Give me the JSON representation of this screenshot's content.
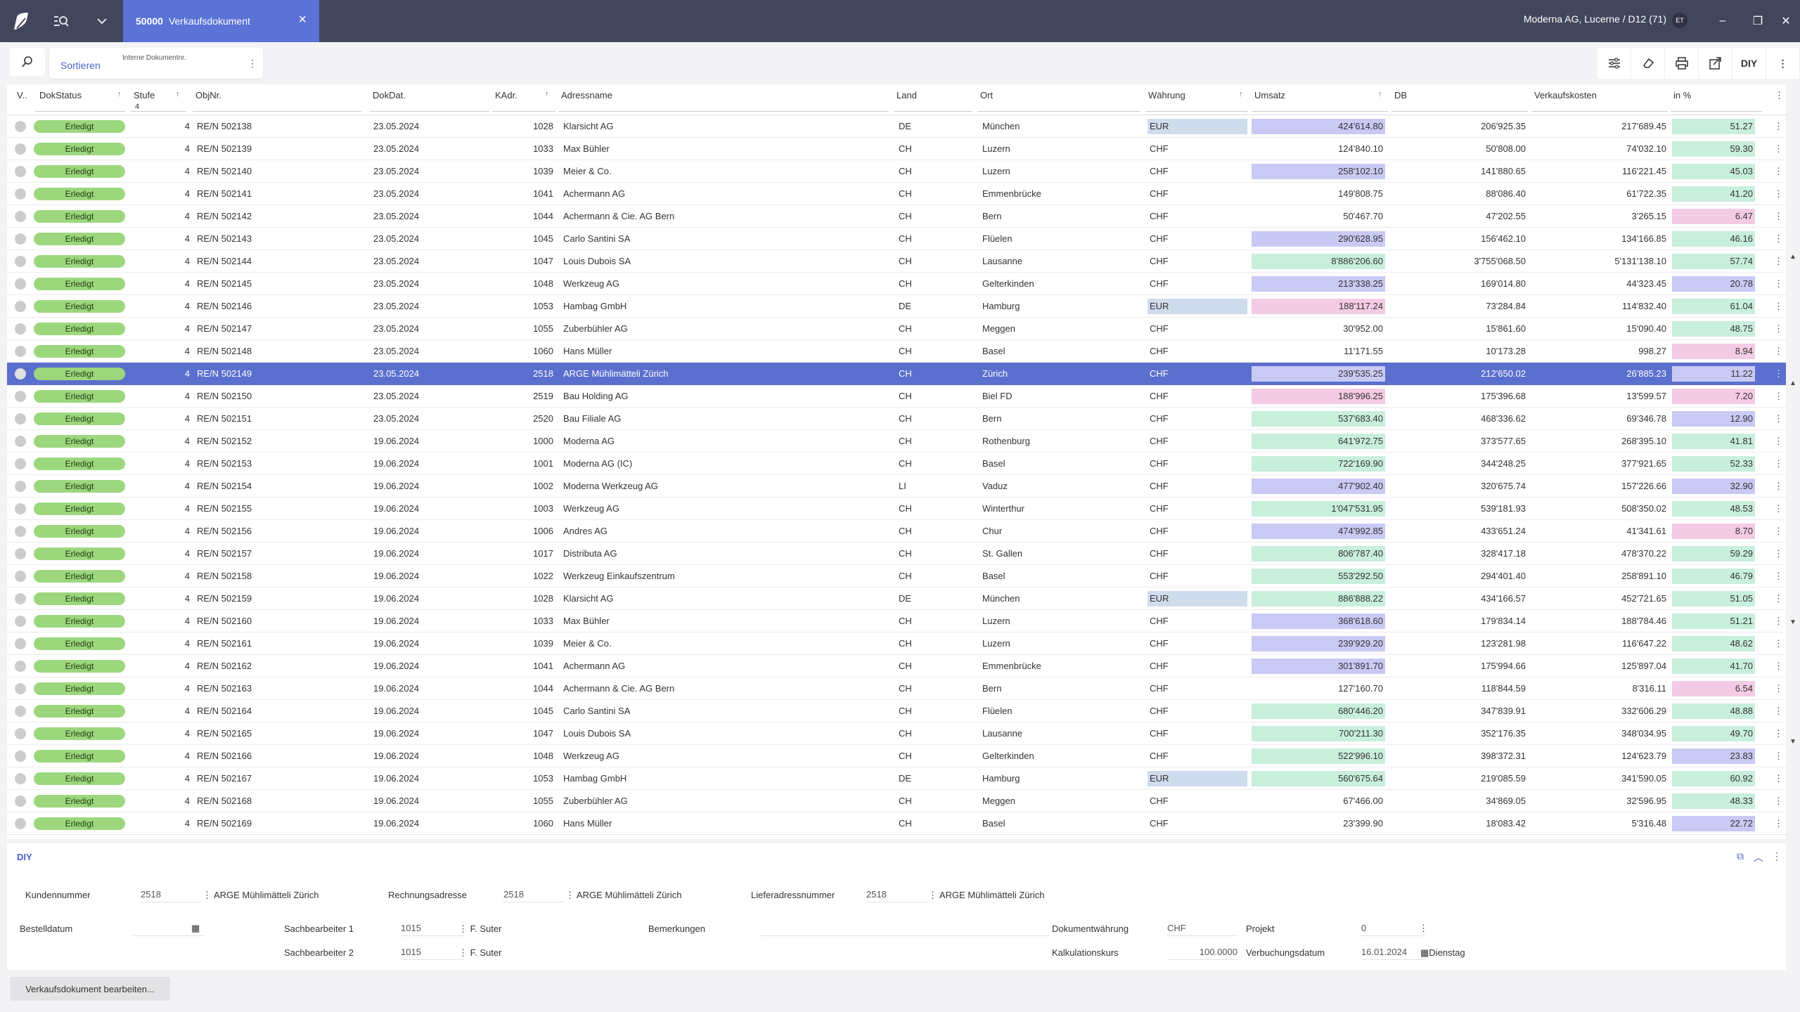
{
  "window": {
    "tab_number": "50000",
    "tab_title": "Verkaufsdokument",
    "company": "Moderna AG, Lucerne / D12 (71)",
    "user_initials": "ET"
  },
  "toolbar": {
    "sort_label": "Sortieren",
    "sort_hint": "Interne Dokumentnr.",
    "diy_label": "DIY"
  },
  "columns": {
    "v": "V..",
    "dokstatus": "DokStatus",
    "stufe": "Stufe",
    "stufe_filter": "4",
    "objnr": "ObjNr.",
    "dokdat": "DokDat.",
    "kadr": "KAdr.",
    "adressname": "Adressname",
    "land": "Land",
    "ort": "Ort",
    "waehrung": "Währung",
    "umsatz": "Umsatz",
    "db": "DB",
    "verkaufskosten": "Verkaufskosten",
    "in_pct": "in %"
  },
  "colors": {
    "purple": "#c9c9f4",
    "green": "#c8efdc",
    "pink": "#f4cbe4",
    "eur": "#cfdced",
    "status": "#9cd77d",
    "selected": "#5b6fcf"
  },
  "rows": [
    {
      "status": "Erledigt",
      "stufe": "4",
      "objnr": "RE/N 502138",
      "date": "23.05.2024",
      "kadr": "1028",
      "name": "Klarsicht AG",
      "land": "DE",
      "ort": "München",
      "cur": "EUR",
      "umsatz": "424'614.80",
      "uc": "purple",
      "db": "206'925.35",
      "vk": "217'689.45",
      "pct": "51.27",
      "pc": "green"
    },
    {
      "status": "Erledigt",
      "stufe": "4",
      "objnr": "RE/N 502139",
      "date": "23.05.2024",
      "kadr": "1033",
      "name": "Max Bühler",
      "land": "CH",
      "ort": "Luzern",
      "cur": "CHF",
      "umsatz": "124'840.10",
      "uc": "",
      "db": "50'808.00",
      "vk": "74'032.10",
      "pct": "59.30",
      "pc": "green"
    },
    {
      "status": "Erledigt",
      "stufe": "4",
      "objnr": "RE/N 502140",
      "date": "23.05.2024",
      "kadr": "1039",
      "name": "Meier & Co.",
      "land": "CH",
      "ort": "Luzern",
      "cur": "CHF",
      "umsatz": "258'102.10",
      "uc": "purple",
      "db": "141'880.65",
      "vk": "116'221.45",
      "pct": "45.03",
      "pc": "green"
    },
    {
      "status": "Erledigt",
      "stufe": "4",
      "objnr": "RE/N 502141",
      "date": "23.05.2024",
      "kadr": "1041",
      "name": "Achermann  AG",
      "land": "CH",
      "ort": "Emmenbrücke",
      "cur": "CHF",
      "umsatz": "149'808.75",
      "uc": "",
      "db": "88'086.40",
      "vk": "61'722.35",
      "pct": "41.20",
      "pc": "green"
    },
    {
      "status": "Erledigt",
      "stufe": "4",
      "objnr": "RE/N 502142",
      "date": "23.05.2024",
      "kadr": "1044",
      "name": "Achermann & Cie. AG Bern",
      "land": "CH",
      "ort": "Bern",
      "cur": "CHF",
      "umsatz": "50'467.70",
      "uc": "",
      "db": "47'202.55",
      "vk": "3'265.15",
      "pct": "6.47",
      "pc": "pink"
    },
    {
      "status": "Erledigt",
      "stufe": "4",
      "objnr": "RE/N 502143",
      "date": "23.05.2024",
      "kadr": "1045",
      "name": "Carlo Santini SA",
      "land": "CH",
      "ort": "Flüelen",
      "cur": "CHF",
      "umsatz": "290'628.95",
      "uc": "purple",
      "db": "156'462.10",
      "vk": "134'166.85",
      "pct": "46.16",
      "pc": "green"
    },
    {
      "status": "Erledigt",
      "stufe": "4",
      "objnr": "RE/N 502144",
      "date": "23.05.2024",
      "kadr": "1047",
      "name": "Louis Dubois SA",
      "land": "CH",
      "ort": "Lausanne",
      "cur": "CHF",
      "umsatz": "8'886'206.60",
      "uc": "green",
      "db": "3'755'068.50",
      "vk": "5'131'138.10",
      "pct": "57.74",
      "pc": "green"
    },
    {
      "status": "Erledigt",
      "stufe": "4",
      "objnr": "RE/N 502145",
      "date": "23.05.2024",
      "kadr": "1048",
      "name": "Werkzeug AG",
      "land": "CH",
      "ort": "Gelterkinden",
      "cur": "CHF",
      "umsatz": "213'338.25",
      "uc": "purple",
      "db": "169'014.80",
      "vk": "44'323.45",
      "pct": "20.78",
      "pc": "purple"
    },
    {
      "status": "Erledigt",
      "stufe": "4",
      "objnr": "RE/N 502146",
      "date": "23.05.2024",
      "kadr": "1053",
      "name": "Hambag GmbH",
      "land": "DE",
      "ort": "Hamburg",
      "cur": "EUR",
      "umsatz": "188'117.24",
      "uc": "pink",
      "db": "73'284.84",
      "vk": "114'832.40",
      "pct": "61.04",
      "pc": "green"
    },
    {
      "status": "Erledigt",
      "stufe": "4",
      "objnr": "RE/N 502147",
      "date": "23.05.2024",
      "kadr": "1055",
      "name": "Zuberbühler AG",
      "land": "CH",
      "ort": "Meggen",
      "cur": "CHF",
      "umsatz": "30'952.00",
      "uc": "",
      "db": "15'861.60",
      "vk": "15'090.40",
      "pct": "48.75",
      "pc": "green"
    },
    {
      "status": "Erledigt",
      "stufe": "4",
      "objnr": "RE/N 502148",
      "date": "23.05.2024",
      "kadr": "1060",
      "name": "Hans Müller",
      "land": "CH",
      "ort": "Basel",
      "cur": "CHF",
      "umsatz": "11'171.55",
      "uc": "",
      "db": "10'173.28",
      "vk": "998.27",
      "pct": "8.94",
      "pc": "pink"
    },
    {
      "status": "Erledigt",
      "stufe": "4",
      "objnr": "RE/N 502149",
      "date": "23.05.2024",
      "kadr": "2518",
      "name": "ARGE Mühlimätteli Zürich",
      "land": "CH",
      "ort": "Zürich",
      "cur": "CHF",
      "umsatz": "239'535.25",
      "uc": "purple",
      "db": "212'650.02",
      "vk": "26'885.23",
      "pct": "11.22",
      "pc": "purple",
      "sel": true
    },
    {
      "status": "Erledigt",
      "stufe": "4",
      "objnr": "RE/N 502150",
      "date": "23.05.2024",
      "kadr": "2519",
      "name": "Bau Holding AG",
      "land": "CH",
      "ort": "Biel FD",
      "cur": "CHF",
      "umsatz": "188'996.25",
      "uc": "pink",
      "db": "175'396.68",
      "vk": "13'599.57",
      "pct": "7.20",
      "pc": "pink"
    },
    {
      "status": "Erledigt",
      "stufe": "4",
      "objnr": "RE/N 502151",
      "date": "23.05.2024",
      "kadr": "2520",
      "name": "Bau Filiale AG",
      "land": "CH",
      "ort": "Bern",
      "cur": "CHF",
      "umsatz": "537'683.40",
      "uc": "green",
      "db": "468'336.62",
      "vk": "69'346.78",
      "pct": "12.90",
      "pc": "purple"
    },
    {
      "status": "Erledigt",
      "stufe": "4",
      "objnr": "RE/N 502152",
      "date": "19.06.2024",
      "kadr": "1000",
      "name": "Moderna AG",
      "land": "CH",
      "ort": "Rothenburg",
      "cur": "CHF",
      "umsatz": "641'972.75",
      "uc": "green",
      "db": "373'577.65",
      "vk": "268'395.10",
      "pct": "41.81",
      "pc": "green"
    },
    {
      "status": "Erledigt",
      "stufe": "4",
      "objnr": "RE/N 502153",
      "date": "19.06.2024",
      "kadr": "1001",
      "name": "Moderna AG (IC)",
      "land": "CH",
      "ort": "Basel",
      "cur": "CHF",
      "umsatz": "722'169.90",
      "uc": "green",
      "db": "344'248.25",
      "vk": "377'921.65",
      "pct": "52.33",
      "pc": "green"
    },
    {
      "status": "Erledigt",
      "stufe": "4",
      "objnr": "RE/N 502154",
      "date": "19.06.2024",
      "kadr": "1002",
      "name": "Moderna Werkzeug AG",
      "land": "LI",
      "ort": "Vaduz",
      "cur": "CHF",
      "umsatz": "477'902.40",
      "uc": "purple",
      "db": "320'675.74",
      "vk": "157'226.66",
      "pct": "32.90",
      "pc": "purple"
    },
    {
      "status": "Erledigt",
      "stufe": "4",
      "objnr": "RE/N 502155",
      "date": "19.06.2024",
      "kadr": "1003",
      "name": "Werkzeug AG",
      "land": "CH",
      "ort": "Winterthur",
      "cur": "CHF",
      "umsatz": "1'047'531.95",
      "uc": "green",
      "db": "539'181.93",
      "vk": "508'350.02",
      "pct": "48.53",
      "pc": "green"
    },
    {
      "status": "Erledigt",
      "stufe": "4",
      "objnr": "RE/N 502156",
      "date": "19.06.2024",
      "kadr": "1006",
      "name": "Andres AG",
      "land": "CH",
      "ort": "Chur",
      "cur": "CHF",
      "umsatz": "474'992.85",
      "uc": "purple",
      "db": "433'651.24",
      "vk": "41'341.61",
      "pct": "8.70",
      "pc": "pink"
    },
    {
      "status": "Erledigt",
      "stufe": "4",
      "objnr": "RE/N 502157",
      "date": "19.06.2024",
      "kadr": "1017",
      "name": "Distributa AG",
      "land": "CH",
      "ort": "St. Gallen",
      "cur": "CHF",
      "umsatz": "806'787.40",
      "uc": "green",
      "db": "328'417.18",
      "vk": "478'370.22",
      "pct": "59.29",
      "pc": "green"
    },
    {
      "status": "Erledigt",
      "stufe": "4",
      "objnr": "RE/N 502158",
      "date": "19.06.2024",
      "kadr": "1022",
      "name": "Werkzeug Einkaufszentrum",
      "land": "CH",
      "ort": "Basel",
      "cur": "CHF",
      "umsatz": "553'292.50",
      "uc": "green",
      "db": "294'401.40",
      "vk": "258'891.10",
      "pct": "46.79",
      "pc": "green"
    },
    {
      "status": "Erledigt",
      "stufe": "4",
      "objnr": "RE/N 502159",
      "date": "19.06.2024",
      "kadr": "1028",
      "name": "Klarsicht AG",
      "land": "DE",
      "ort": "München",
      "cur": "EUR",
      "umsatz": "886'888.22",
      "uc": "green",
      "db": "434'166.57",
      "vk": "452'721.65",
      "pct": "51.05",
      "pc": "green"
    },
    {
      "status": "Erledigt",
      "stufe": "4",
      "objnr": "RE/N 502160",
      "date": "19.06.2024",
      "kadr": "1033",
      "name": "Max Bühler",
      "land": "CH",
      "ort": "Luzern",
      "cur": "CHF",
      "umsatz": "368'618.60",
      "uc": "purple",
      "db": "179'834.14",
      "vk": "188'784.46",
      "pct": "51.21",
      "pc": "green"
    },
    {
      "status": "Erledigt",
      "stufe": "4",
      "objnr": "RE/N 502161",
      "date": "19.06.2024",
      "kadr": "1039",
      "name": "Meier & Co.",
      "land": "CH",
      "ort": "Luzern",
      "cur": "CHF",
      "umsatz": "239'929.20",
      "uc": "purple",
      "db": "123'281.98",
      "vk": "116'647.22",
      "pct": "48.62",
      "pc": "green"
    },
    {
      "status": "Erledigt",
      "stufe": "4",
      "objnr": "RE/N 502162",
      "date": "19.06.2024",
      "kadr": "1041",
      "name": "Achermann  AG",
      "land": "CH",
      "ort": "Emmenbrücke",
      "cur": "CHF",
      "umsatz": "301'891.70",
      "uc": "purple",
      "db": "175'994.66",
      "vk": "125'897.04",
      "pct": "41.70",
      "pc": "green"
    },
    {
      "status": "Erledigt",
      "stufe": "4",
      "objnr": "RE/N 502163",
      "date": "19.06.2024",
      "kadr": "1044",
      "name": "Achermann & Cie. AG Bern",
      "land": "CH",
      "ort": "Bern",
      "cur": "CHF",
      "umsatz": "127'160.70",
      "uc": "",
      "db": "118'844.59",
      "vk": "8'316.11",
      "pct": "6.54",
      "pc": "pink"
    },
    {
      "status": "Erledigt",
      "stufe": "4",
      "objnr": "RE/N 502164",
      "date": "19.06.2024",
      "kadr": "1045",
      "name": "Carlo Santini SA",
      "land": "CH",
      "ort": "Flüelen",
      "cur": "CHF",
      "umsatz": "680'446.20",
      "uc": "green",
      "db": "347'839.91",
      "vk": "332'606.29",
      "pct": "48.88",
      "pc": "green"
    },
    {
      "status": "Erledigt",
      "stufe": "4",
      "objnr": "RE/N 502165",
      "date": "19.06.2024",
      "kadr": "1047",
      "name": "Louis Dubois SA",
      "land": "CH",
      "ort": "Lausanne",
      "cur": "CHF",
      "umsatz": "700'211.30",
      "uc": "green",
      "db": "352'176.35",
      "vk": "348'034.95",
      "pct": "49.70",
      "pc": "green"
    },
    {
      "status": "Erledigt",
      "stufe": "4",
      "objnr": "RE/N 502166",
      "date": "19.06.2024",
      "kadr": "1048",
      "name": "Werkzeug AG",
      "land": "CH",
      "ort": "Gelterkinden",
      "cur": "CHF",
      "umsatz": "522'996.10",
      "uc": "green",
      "db": "398'372.31",
      "vk": "124'623.79",
      "pct": "23.83",
      "pc": "purple"
    },
    {
      "status": "Erledigt",
      "stufe": "4",
      "objnr": "RE/N 502167",
      "date": "19.06.2024",
      "kadr": "1053",
      "name": "Hambag GmbH",
      "land": "DE",
      "ort": "Hamburg",
      "cur": "EUR",
      "umsatz": "560'675.64",
      "uc": "green",
      "db": "219'085.59",
      "vk": "341'590.05",
      "pct": "60.92",
      "pc": "green"
    },
    {
      "status": "Erledigt",
      "stufe": "4",
      "objnr": "RE/N 502168",
      "date": "19.06.2024",
      "kadr": "1055",
      "name": "Zuberbühler AG",
      "land": "CH",
      "ort": "Meggen",
      "cur": "CHF",
      "umsatz": "67'466.00",
      "uc": "",
      "db": "34'869.05",
      "vk": "32'596.95",
      "pct": "48.33",
      "pc": "green"
    },
    {
      "status": "Erledigt",
      "stufe": "4",
      "objnr": "RE/N 502169",
      "date": "19.06.2024",
      "kadr": "1060",
      "name": "Hans Müller",
      "land": "CH",
      "ort": "Basel",
      "cur": "CHF",
      "umsatz": "23'399.90",
      "uc": "",
      "db": "18'083.42",
      "vk": "5'316.48",
      "pct": "22.72",
      "pc": "purple"
    }
  ],
  "detail": {
    "title": "DIY",
    "kundennummer_label": "Kundennummer",
    "kundennummer": "2518",
    "kundenname": "ARGE Mühlimätteli Zürich",
    "rechnungsadresse_label": "Rechnungsadresse",
    "rechnungsadresse": "2518",
    "rechnungsname": "ARGE Mühlimätteli Zürich",
    "lieferadresse_label": "Lieferadressnummer",
    "lieferadresse": "2518",
    "liefername": "ARGE Mühlimätteli Zürich",
    "bestelldatum_label": "Bestelldatum",
    "bestelldatum": "",
    "sb1_label": "Sachbearbeiter 1",
    "sb1": "1015",
    "sb1_name": "F. Suter",
    "sb2_label": "Sachbearbeiter 2",
    "sb2": "1015",
    "sb2_name": "F. Suter",
    "bemerkungen_label": "Bemerkungen",
    "bemerkungen": "",
    "dokwaehrung_label": "Dokumentwährung",
    "dokwaehrung": "CHF",
    "projekt_label": "Projekt",
    "projekt": "0",
    "kalkkurs_label": "Kalkulationskurs",
    "kalkkurs": "100.0000",
    "buchungsdatum_label": "Verbuchungsdatum",
    "buchungsdatum": "16.01.2024",
    "wochentag": "Dienstag",
    "edit_button": "Verkaufsdokument bearbeiten..."
  }
}
